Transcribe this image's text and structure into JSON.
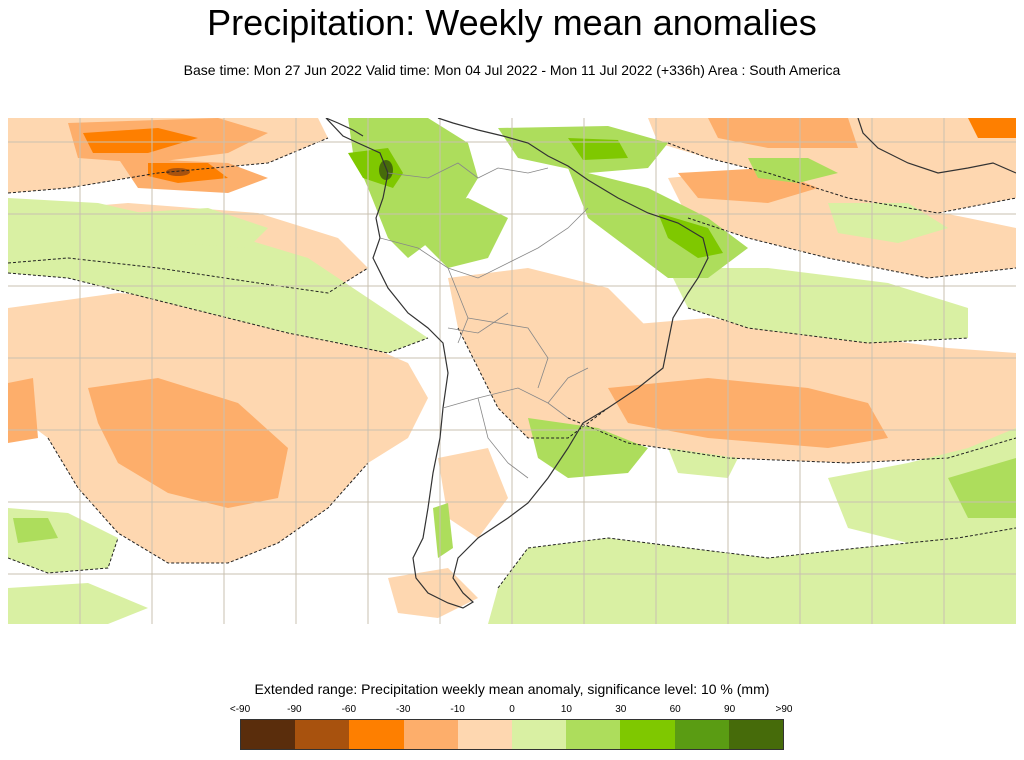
{
  "title": "Precipitation: Weekly mean anomalies",
  "subtitle": "Base time: Mon 27 Jun 2022 Valid time: Mon 04 Jul 2022 - Mon 11 Jul 2022 (+336h) Area : South America",
  "legend": {
    "title": "Extended range: Precipitation weekly mean anomaly, significance level: 10 % (mm)",
    "labels": [
      "<-90",
      "-90",
      "-60",
      "-30",
      "-10",
      "0",
      "10",
      "30",
      "60",
      "90",
      ">90"
    ],
    "colors": [
      "#5a2d0c",
      "#a8520e",
      "#fe7f00",
      "#fdae6b",
      "#fed7b0",
      "#d9f0a3",
      "#addd5c",
      "#7fc800",
      "#5a9c13",
      "#466b0a"
    ]
  },
  "palette": {
    "dry_light": "#fed7b0",
    "dry_medium": "#fdae6b",
    "dry_strong": "#fe7f00",
    "dry_very": "#a8520e",
    "wet_light": "#d9f0a3",
    "wet_medium": "#addd5c",
    "wet_strong": "#7fc800",
    "wet_very": "#466b0a",
    "grid": "#c9c0b0",
    "coast": "#333333",
    "border": "#888888",
    "significance_contour": "#222222"
  }
}
